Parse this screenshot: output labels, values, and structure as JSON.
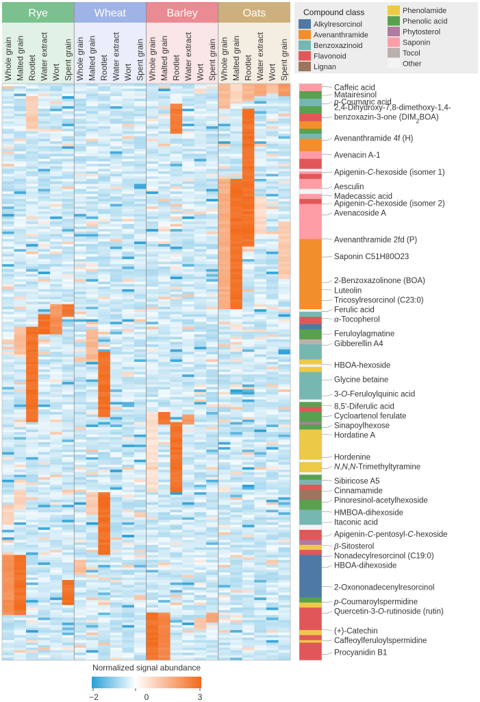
{
  "chart_data": {
    "type": "heatmap",
    "title": "",
    "groups": [
      {
        "name": "Rye",
        "color": "#7cc08f"
      },
      {
        "name": "Wheat",
        "color": "#9fb3e6"
      },
      {
        "name": "Barley",
        "color": "#ea8a92"
      },
      {
        "name": "Oats",
        "color": "#cdb07d"
      }
    ],
    "sample_types": [
      "Whole grain",
      "Malted grain",
      "Rootlet",
      "Water extract",
      "Wort",
      "Spent grain"
    ],
    "row_count": 230,
    "colorbar": {
      "title": "Normalized signal abundance",
      "ticks": [
        "−2",
        "0",
        "3"
      ],
      "min": -2,
      "max": 3,
      "low_color": "#2a9fd6",
      "mid_color": "#ffffff",
      "high_color": "#f26a1b"
    },
    "legend": {
      "title": "Compound class",
      "items": [
        {
          "label": "Alkylresorcinol",
          "color": "#4e79a7"
        },
        {
          "label": "Avenanthramide",
          "color": "#f28e2b"
        },
        {
          "label": "Benzoxazinoid",
          "color": "#76b7b2"
        },
        {
          "label": "Flavonoid",
          "color": "#e15759"
        },
        {
          "label": "Lignan",
          "color": "#9c755f"
        },
        {
          "label": "Phenolamide",
          "color": "#edc948"
        },
        {
          "label": "Phenolic acid",
          "color": "#59a14f"
        },
        {
          "label": "Phytosterol",
          "color": "#b07aa1"
        },
        {
          "label": "Saponin",
          "color": "#ff9da7"
        },
        {
          "label": "Tocol",
          "color": "#bab0ac"
        },
        {
          "label": "Other",
          "color": "#f4f4f4"
        }
      ]
    },
    "class_blocks": [
      {
        "class": "Saponin",
        "from": 0,
        "to": 3
      },
      {
        "class": "Phenolic acid",
        "from": 3,
        "to": 6
      },
      {
        "class": "Benzoxazinoid",
        "from": 6,
        "to": 9
      },
      {
        "class": "Phenolic acid",
        "from": 9,
        "to": 12
      },
      {
        "class": "Flavonoid",
        "from": 12,
        "to": 15
      },
      {
        "class": "Avenanthramide",
        "from": 15,
        "to": 18
      },
      {
        "class": "Phenolic acid",
        "from": 18,
        "to": 20
      },
      {
        "class": "Benzoxazinoid",
        "from": 20,
        "to": 22
      },
      {
        "class": "Avenanthramide",
        "from": 22,
        "to": 27
      },
      {
        "class": "Saponin",
        "from": 27,
        "to": 30
      },
      {
        "class": "Flavonoid",
        "from": 30,
        "to": 34
      },
      {
        "class": "Other",
        "from": 34,
        "to": 35
      },
      {
        "class": "Saponin",
        "from": 35,
        "to": 36
      },
      {
        "class": "Flavonoid",
        "from": 36,
        "to": 38
      },
      {
        "class": "Saponin",
        "from": 38,
        "to": 42
      },
      {
        "class": "Other",
        "from": 42,
        "to": 44
      },
      {
        "class": "Saponin",
        "from": 44,
        "to": 46
      },
      {
        "class": "Flavonoid",
        "from": 46,
        "to": 48
      },
      {
        "class": "Saponin",
        "from": 48,
        "to": 62
      },
      {
        "class": "Avenanthramide",
        "from": 62,
        "to": 90
      },
      {
        "class": "Other",
        "from": 90,
        "to": 91
      },
      {
        "class": "Benzoxazinoid",
        "from": 91,
        "to": 93
      },
      {
        "class": "Flavonoid",
        "from": 93,
        "to": 96
      },
      {
        "class": "Alkylresorcinol",
        "from": 96,
        "to": 98
      },
      {
        "class": "Phenolic acid",
        "from": 98,
        "to": 102
      },
      {
        "class": "Tocol",
        "from": 102,
        "to": 104
      },
      {
        "class": "Benzoxazinoid",
        "from": 104,
        "to": 110
      },
      {
        "class": "Phenolamide",
        "from": 110,
        "to": 112
      },
      {
        "class": "Other",
        "from": 112,
        "to": 113
      },
      {
        "class": "Phenolamide",
        "from": 113,
        "to": 115
      },
      {
        "class": "Benzoxazinoid",
        "from": 115,
        "to": 126
      },
      {
        "class": "Other",
        "from": 126,
        "to": 127
      },
      {
        "class": "Phenolic acid",
        "from": 127,
        "to": 129
      },
      {
        "class": "Flavonoid",
        "from": 129,
        "to": 131
      },
      {
        "class": "Phenolic acid",
        "from": 131,
        "to": 135
      },
      {
        "class": "Phytosterol",
        "from": 135,
        "to": 136
      },
      {
        "class": "Phenolic acid",
        "from": 136,
        "to": 138
      },
      {
        "class": "Phenolamide",
        "from": 138,
        "to": 150
      },
      {
        "class": "Other",
        "from": 150,
        "to": 151
      },
      {
        "class": "Phenolamide",
        "from": 151,
        "to": 155
      },
      {
        "class": "Other",
        "from": 155,
        "to": 156
      },
      {
        "class": "Phenolic acid",
        "from": 156,
        "to": 158
      },
      {
        "class": "Benzoxazinoid",
        "from": 158,
        "to": 160
      },
      {
        "class": "Flavonoid",
        "from": 160,
        "to": 162
      },
      {
        "class": "Lignan",
        "from": 162,
        "to": 166
      },
      {
        "class": "Phenolic acid",
        "from": 166,
        "to": 170
      },
      {
        "class": "Benzoxazinoid",
        "from": 170,
        "to": 176
      },
      {
        "class": "Other",
        "from": 176,
        "to": 178
      },
      {
        "class": "Flavonoid",
        "from": 178,
        "to": 182
      },
      {
        "class": "Phytosterol",
        "from": 182,
        "to": 184
      },
      {
        "class": "Phenolamide",
        "from": 184,
        "to": 186
      },
      {
        "class": "Flavonoid",
        "from": 186,
        "to": 188
      },
      {
        "class": "Alkylresorcinol",
        "from": 188,
        "to": 205
      },
      {
        "class": "Phenolic acid",
        "from": 205,
        "to": 207
      },
      {
        "class": "Phenolamide",
        "from": 207,
        "to": 209
      },
      {
        "class": "Flavonoid",
        "from": 209,
        "to": 218
      },
      {
        "class": "Phenolamide",
        "from": 218,
        "to": 220
      },
      {
        "class": "Flavonoid",
        "from": 220,
        "to": 222
      },
      {
        "class": "Phenolamide",
        "from": 222,
        "to": 223
      },
      {
        "class": "Flavonoid",
        "from": 223,
        "to": 230
      }
    ],
    "blocks": [
      {
        "col": 18,
        "from": 0,
        "to": 10,
        "value": 1.5
      },
      {
        "col": 19,
        "from": 0,
        "to": 8,
        "value": 1.0
      },
      {
        "col": 20,
        "from": 0,
        "to": 7,
        "value": 1.6
      },
      {
        "col": 21,
        "from": 0,
        "to": 5,
        "value": 2.0
      },
      {
        "col": 22,
        "from": 0,
        "to": 4,
        "value": 1.4
      },
      {
        "col": 23,
        "from": 0,
        "to": 5,
        "value": 2.2
      },
      {
        "col": 14,
        "from": 8,
        "to": 20,
        "value": 2.8
      },
      {
        "col": 2,
        "from": 5,
        "to": 18,
        "value": 1.2
      },
      {
        "col": 20,
        "from": 10,
        "to": 65,
        "value": 3.0
      },
      {
        "col": 19,
        "from": 38,
        "to": 90,
        "value": 3.0
      },
      {
        "col": 18,
        "from": 38,
        "to": 90,
        "value": 1.8
      },
      {
        "col": 21,
        "from": 45,
        "to": 60,
        "value": 0.9
      },
      {
        "col": 23,
        "from": 55,
        "to": 78,
        "value": 1.2
      },
      {
        "col": 5,
        "from": 88,
        "to": 93,
        "value": 3.0
      },
      {
        "col": 4,
        "from": 88,
        "to": 93,
        "value": 2.2
      },
      {
        "col": 3,
        "from": 92,
        "to": 100,
        "value": 3.0
      },
      {
        "col": 4,
        "from": 93,
        "to": 100,
        "value": 2.5
      },
      {
        "col": 2,
        "from": 97,
        "to": 135,
        "value": 3.0
      },
      {
        "col": 1,
        "from": 97,
        "to": 108,
        "value": 1.5
      },
      {
        "col": 8,
        "from": 107,
        "to": 133,
        "value": 3.0
      },
      {
        "col": 7,
        "from": 98,
        "to": 110,
        "value": 1.6
      },
      {
        "col": 14,
        "from": 135,
        "to": 163,
        "value": 3.0
      },
      {
        "col": 13,
        "from": 131,
        "to": 136,
        "value": 3.0
      },
      {
        "col": 12,
        "from": 131,
        "to": 163,
        "value": 0.8
      },
      {
        "col": 15,
        "from": 132,
        "to": 136,
        "value": 2.2
      },
      {
        "col": 8,
        "from": 163,
        "to": 188,
        "value": 3.0
      },
      {
        "col": 7,
        "from": 163,
        "to": 172,
        "value": 1.2
      },
      {
        "col": 1,
        "from": 162,
        "to": 170,
        "value": 1.0
      },
      {
        "col": 0,
        "from": 168,
        "to": 176,
        "value": 1.0
      },
      {
        "col": 1,
        "from": 188,
        "to": 212,
        "value": 3.0
      },
      {
        "col": 0,
        "from": 188,
        "to": 212,
        "value": 2.4
      },
      {
        "col": 5,
        "from": 198,
        "to": 208,
        "value": 3.0
      },
      {
        "col": 6,
        "from": 190,
        "to": 196,
        "value": 1.4
      },
      {
        "col": 12,
        "from": 211,
        "to": 230,
        "value": 3.0
      },
      {
        "col": 13,
        "from": 211,
        "to": 230,
        "value": 2.6
      },
      {
        "col": 17,
        "from": 211,
        "to": 215,
        "value": 2.0
      },
      {
        "col": 16,
        "from": 213,
        "to": 218,
        "value": 1.2
      }
    ],
    "compound_labels": [
      {
        "row": 1,
        "parts": [
          {
            "t": "Caffeic acid"
          }
        ]
      },
      {
        "row": 4,
        "parts": [
          {
            "t": "Matairesinol"
          }
        ]
      },
      {
        "row": 7,
        "parts": [
          {
            "t": "p",
            "i": true
          },
          {
            "t": "-Coumaric acid"
          }
        ]
      },
      {
        "row": 11,
        "parts": [
          {
            "t": "2,4-Dihydroxy-7,8-dimethoxy-1,4-"
          }
        ],
        "offset": -6
      },
      {
        "row": 11,
        "parts": [
          {
            "t": "benzoxazin-3-one (DIM"
          },
          {
            "t": "2",
            "sub": true
          },
          {
            "t": "BOA)"
          }
        ],
        "offset": 8
      },
      {
        "row": 22,
        "parts": [
          {
            "t": "Avenanthramide 4f (H)"
          }
        ]
      },
      {
        "row": 29,
        "parts": [
          {
            "t": "Avenacin A-1"
          }
        ]
      },
      {
        "row": 36,
        "parts": [
          {
            "t": "Apigenin-"
          },
          {
            "t": "C",
            "i": true
          },
          {
            "t": "-hexoside (isomer 1)"
          }
        ]
      },
      {
        "row": 42,
        "parts": [
          {
            "t": "Aesculin"
          }
        ]
      },
      {
        "row": 46,
        "parts": [
          {
            "t": "Madecassic acid"
          }
        ]
      },
      {
        "row": 49,
        "parts": [
          {
            "t": "Apigenin-"
          },
          {
            "t": "C",
            "i": true
          },
          {
            "t": "-hexoside (isomer 2)"
          }
        ]
      },
      {
        "row": 53,
        "parts": [
          {
            "t": "Avenacoside A"
          }
        ]
      },
      {
        "row": 64,
        "parts": [
          {
            "t": "Avenanthramide 2fd (P)"
          }
        ]
      },
      {
        "row": 71,
        "parts": [
          {
            "t": "Saponin C51H80O23"
          }
        ]
      },
      {
        "row": 81,
        "parts": [
          {
            "t": "2-Benzoxazolinone (BOA)"
          }
        ]
      },
      {
        "row": 85,
        "parts": [
          {
            "t": "Luteolin"
          }
        ]
      },
      {
        "row": 89,
        "parts": [
          {
            "t": "Tricosylresorcinol (C23:0)"
          }
        ]
      },
      {
        "row": 93,
        "parts": [
          {
            "t": "Ferulic acid"
          }
        ]
      },
      {
        "row": 97,
        "parts": [
          {
            "t": "α",
            "i": true
          },
          {
            "t": "-Tocopherol"
          }
        ]
      },
      {
        "row": 103,
        "parts": [
          {
            "t": "Feruloylagmatine"
          }
        ]
      },
      {
        "row": 107,
        "parts": [
          {
            "t": "Gibberellin A4"
          }
        ]
      },
      {
        "row": 116,
        "parts": [
          {
            "t": "HBOA-hexoside"
          }
        ]
      },
      {
        "row": 122,
        "parts": [
          {
            "t": "Glycine betaine"
          }
        ]
      },
      {
        "row": 128,
        "parts": [
          {
            "t": "3-"
          },
          {
            "t": "O",
            "i": true
          },
          {
            "t": "-Feruloylquinic acid"
          }
        ]
      },
      {
        "row": 133,
        "parts": [
          {
            "t": "8,5'-Diferulic acid"
          }
        ]
      },
      {
        "row": 137,
        "parts": [
          {
            "t": "Cycloartenol ferulate"
          }
        ]
      },
      {
        "row": 141,
        "parts": [
          {
            "t": "Sinapoylhexose"
          }
        ]
      },
      {
        "row": 145,
        "parts": [
          {
            "t": "Hordatine A"
          }
        ]
      },
      {
        "row": 154,
        "parts": [
          {
            "t": "Hordenine"
          }
        ]
      },
      {
        "row": 158,
        "parts": [
          {
            "t": "N",
            "i": true
          },
          {
            "t": ","
          },
          {
            "t": "N",
            "i": true
          },
          {
            "t": ","
          },
          {
            "t": "N",
            "i": true
          },
          {
            "t": "-Trimethyltyramine"
          }
        ]
      },
      {
        "row": 164,
        "parts": [
          {
            "t": "Sibiricose A5"
          }
        ]
      },
      {
        "row": 168,
        "parts": [
          {
            "t": "Cinnamamide"
          }
        ]
      },
      {
        "row": 172,
        "parts": [
          {
            "t": "Pinoresinol-acetylhexoside"
          }
        ]
      },
      {
        "row": 177,
        "parts": [
          {
            "t": "HMBOA-dihexoside"
          }
        ]
      },
      {
        "row": 181,
        "parts": [
          {
            "t": "Itaconic acid"
          }
        ]
      },
      {
        "row": 186,
        "parts": [
          {
            "t": "Apigenin-"
          },
          {
            "t": "C",
            "i": true
          },
          {
            "t": "-pentosyl-"
          },
          {
            "t": "C",
            "i": true
          },
          {
            "t": "-hexoside"
          }
        ]
      },
      {
        "row": 191,
        "parts": [
          {
            "t": "β",
            "i": true
          },
          {
            "t": "-Sitosterol"
          }
        ]
      },
      {
        "row": 195,
        "parts": [
          {
            "t": "Nonadecylresorcinol (C19:0)"
          }
        ]
      },
      {
        "row": 199,
        "parts": [
          {
            "t": "HBOA-dihexoside"
          }
        ]
      },
      {
        "row": 208,
        "parts": [
          {
            "t": "2-Oxononadecenylresorcinol"
          }
        ]
      },
      {
        "row": 214,
        "parts": [
          {
            "t": "p",
            "i": true
          },
          {
            "t": "-Coumaroylspermidine"
          }
        ]
      },
      {
        "row": 218,
        "parts": [
          {
            "t": "Quercetin-3-"
          },
          {
            "t": "O",
            "i": true
          },
          {
            "t": "-rutinoside (rutin)"
          }
        ]
      },
      {
        "row": 226,
        "parts": [
          {
            "t": "(+)-Catechin"
          }
        ]
      },
      {
        "row": 230,
        "parts": [
          {
            "t": "Caffeoylferuloylspermidine"
          }
        ]
      },
      {
        "row": 235,
        "parts": [
          {
            "t": "Procyanidin B1"
          }
        ]
      }
    ]
  }
}
